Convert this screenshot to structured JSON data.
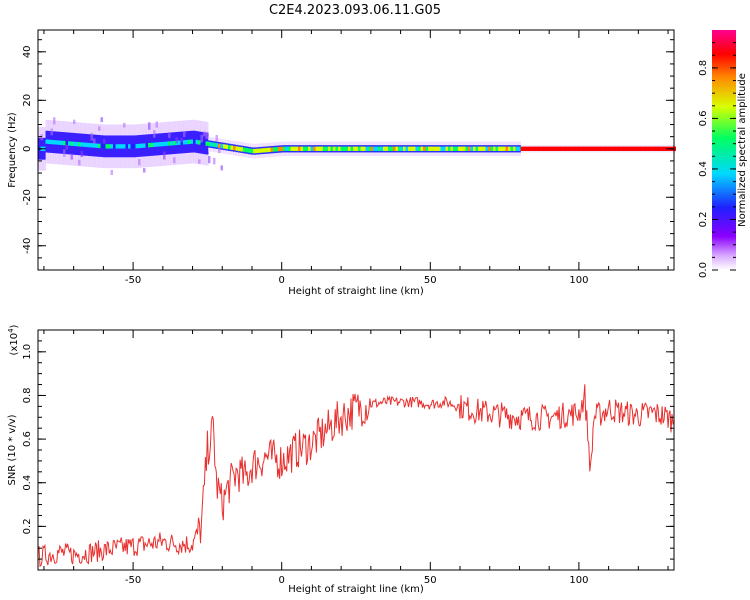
{
  "title": "C2E4.2023.093.06.11.G05",
  "chart_data": [
    {
      "type": "heatmap",
      "xlabel": "Height of straight line (km)",
      "ylabel": "Frequency (Hz)",
      "xlim": [
        -82,
        132
      ],
      "ylim": [
        -50,
        49
      ],
      "x_ticks": [
        -50,
        0,
        50,
        100
      ],
      "y_ticks": [
        -40,
        -20,
        0,
        20,
        40
      ],
      "x_tick_labels": [
        "-50",
        "0",
        "50",
        "100"
      ],
      "y_tick_labels": [
        "-40",
        "-20",
        "0",
        "20",
        "40"
      ],
      "colorbar": {
        "label": "Normalized spectral amplitude",
        "range": [
          0,
          0.95
        ],
        "ticks": [
          0.0,
          0.2,
          0.4,
          0.6,
          0.8
        ],
        "tick_labels": [
          "0.0",
          "0.2",
          "0.4",
          "0.6",
          "0.8"
        ],
        "colors": [
          "#ffffff",
          "#a000ff",
          "#2020ff",
          "#00e0ff",
          "#00ff40",
          "#e0ff00",
          "#ff8000",
          "#ff0000",
          "#ff00a0"
        ]
      },
      "ridge": {
        "description_points_x": [
          -80,
          -70,
          -60,
          -50,
          -40,
          -30,
          -20,
          -10,
          0,
          10,
          20,
          40,
          60,
          80,
          100,
          132
        ],
        "frequency_hz": [
          3,
          2,
          1,
          1,
          2,
          3,
          1,
          -1,
          0,
          0,
          0,
          0,
          0,
          0,
          0,
          0
        ]
      }
    },
    {
      "type": "line",
      "xlabel": "Height of straight line (km)",
      "ylabel": "SNR (10 * v/v)",
      "exponent_label": "(x10",
      "exponent_sup": "4",
      "exponent_close": ")",
      "xlim": [
        -82,
        132
      ],
      "ylim": [
        0,
        1.1
      ],
      "x_ticks": [
        -50,
        0,
        50,
        100
      ],
      "y_ticks": [
        0.2,
        0.4,
        0.6,
        0.8,
        1.0
      ],
      "x_tick_labels": [
        "-50",
        "0",
        "50",
        "100"
      ],
      "y_tick_labels": [
        "0.2",
        "0.4",
        "0.6",
        "0.8",
        "1.0"
      ],
      "color": "#e8302e",
      "series": [
        {
          "x": [
            -82,
            -75,
            -70,
            -65,
            -60,
            -55,
            -50,
            -45,
            -40,
            -35,
            -30,
            -27,
            -25,
            -23,
            -22,
            -20,
            -18,
            -15,
            -12,
            -10,
            -5,
            0,
            5,
            10,
            15,
            20,
            25,
            30,
            35,
            40,
            45,
            50,
            55,
            60,
            65,
            70,
            75,
            80,
            85,
            90,
            95,
            100,
            102,
            104,
            105,
            108,
            110,
            115,
            120,
            125,
            130,
            132
          ],
          "values": [
            0.06,
            0.08,
            0.07,
            0.08,
            0.09,
            0.1,
            0.11,
            0.12,
            0.13,
            0.12,
            0.12,
            0.2,
            0.55,
            0.65,
            0.4,
            0.3,
            0.38,
            0.45,
            0.42,
            0.48,
            0.52,
            0.5,
            0.55,
            0.58,
            0.64,
            0.7,
            0.74,
            0.76,
            0.77,
            0.77,
            0.77,
            0.76,
            0.77,
            0.75,
            0.73,
            0.72,
            0.71,
            0.7,
            0.7,
            0.7,
            0.71,
            0.72,
            0.8,
            0.45,
            0.7,
            0.72,
            0.74,
            0.72,
            0.71,
            0.72,
            0.7,
            0.68
          ]
        }
      ]
    }
  ]
}
